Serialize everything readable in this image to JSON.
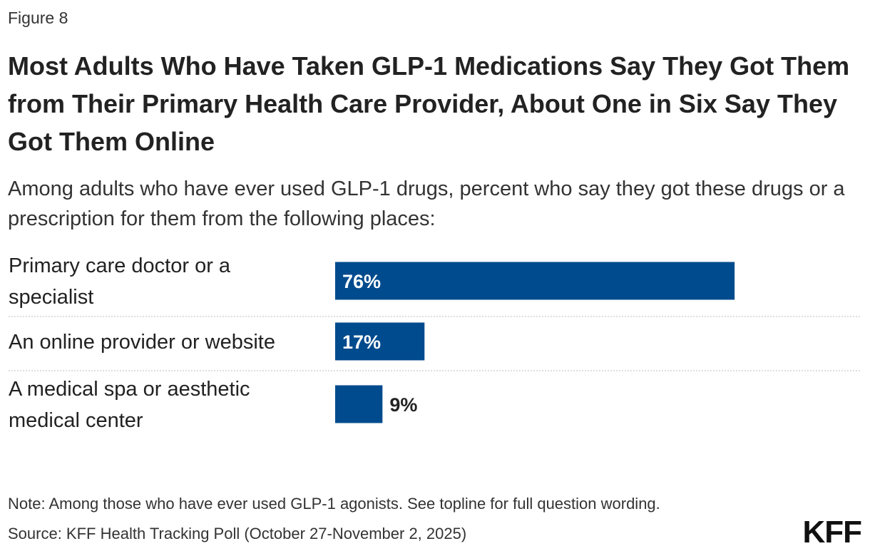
{
  "figure_label": "Figure 8",
  "logo_text": "KFF",
  "chart_data": {
    "type": "bar",
    "orientation": "horizontal",
    "title": "Most Adults Who Have Taken GLP-1 Medications Say They Got Them from Their Primary Health Care Provider, About One in Six Say They Got Them Online",
    "subtitle": "Among adults who have ever used GLP-1 drugs, percent who say they got these drugs or a prescription for them from the following places:",
    "categories": [
      [
        "Primary care doctor or a",
        "specialist"
      ],
      [
        "An online provider or website"
      ],
      [
        "A medical spa or aesthetic",
        "medical center"
      ]
    ],
    "values": [
      76,
      17,
      9
    ],
    "value_labels": [
      "76%",
      "17%",
      "9%"
    ],
    "xlim": [
      0,
      100
    ],
    "bar_color": "#004b8d",
    "grid": false,
    "note": "Note: Among those who have ever used GLP-1 agonists. See topline for full question wording.",
    "source": "Source: KFF Health Tracking Poll (October 27-November 2, 2025)"
  }
}
